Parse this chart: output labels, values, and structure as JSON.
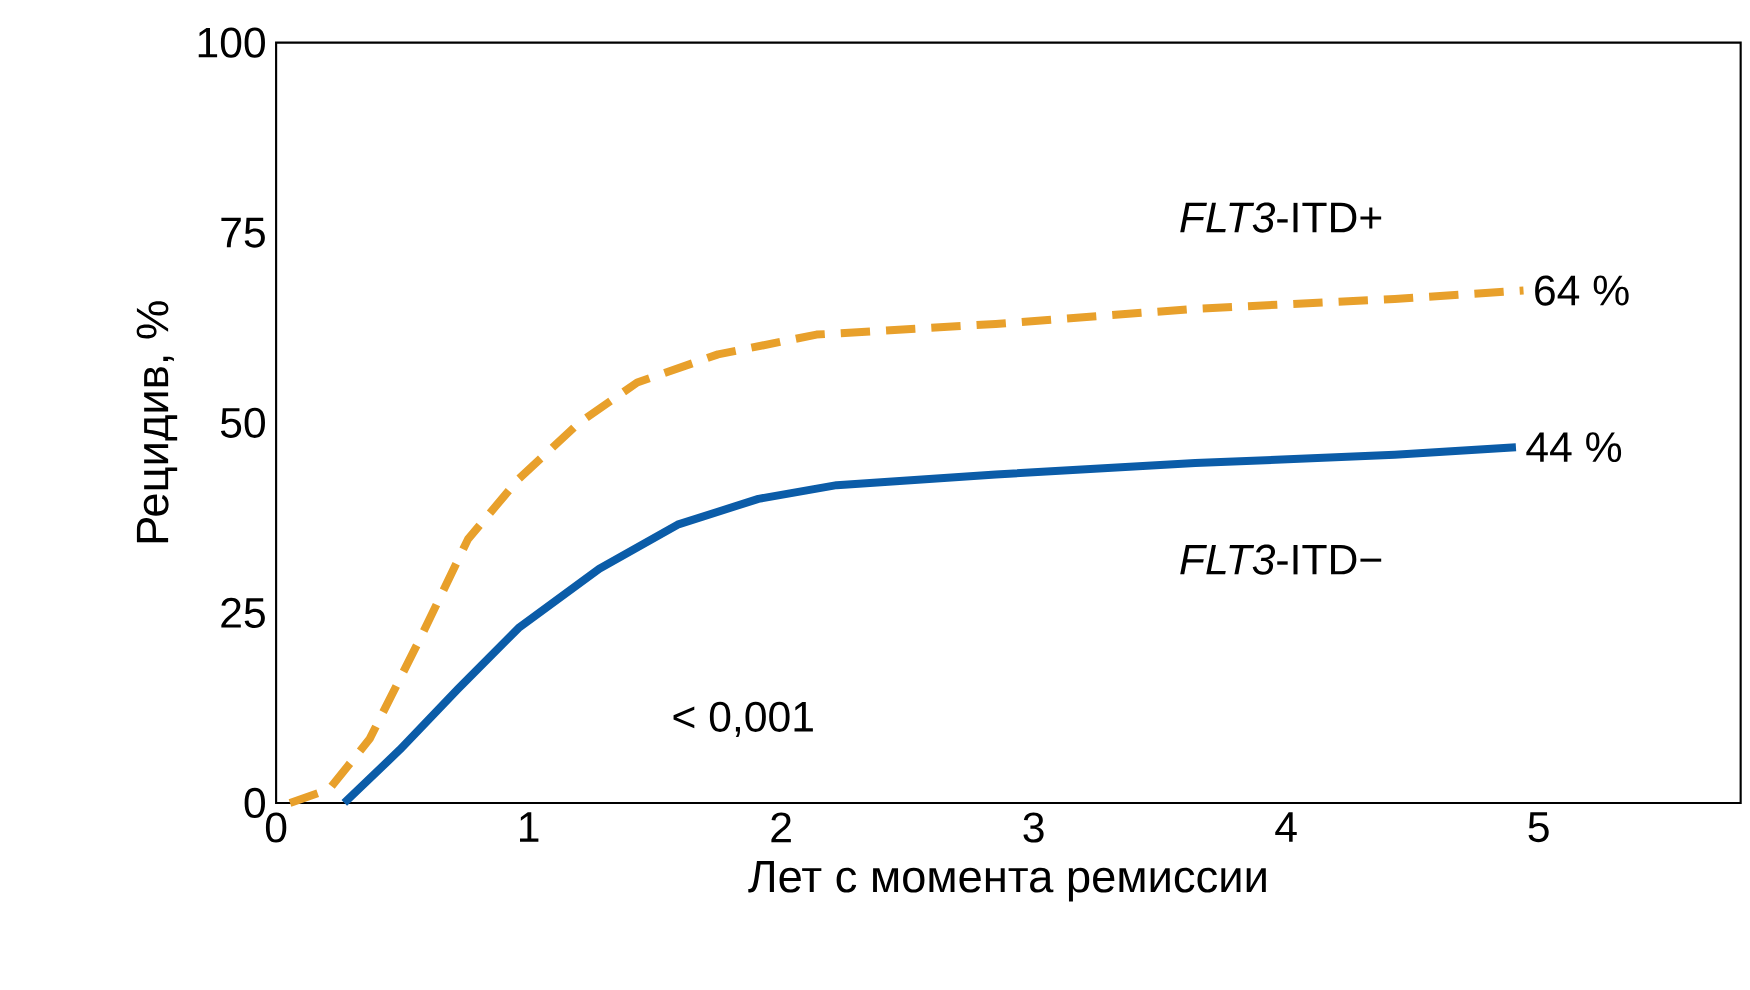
{
  "chart_data": {
    "type": "line",
    "xlabel": "Лет с момента ремиссии",
    "ylabel": "Рецидив, %",
    "xlim": [
      0,
      5.8
    ],
    "ylim": [
      0,
      100
    ],
    "xticks": [
      0,
      1,
      2,
      3,
      4,
      5
    ],
    "yticks": [
      0,
      25,
      50,
      75,
      100
    ],
    "grid": false,
    "legend": false,
    "marker": "none",
    "series": [
      {
        "name": "*FLT3*-ITD+",
        "color": "#e8a02b",
        "line_style": "dashed",
        "x": [
          0.055,
          0.21,
          0.37,
          0.57,
          0.76,
          0.96,
          1.2,
          1.43,
          1.75,
          2.14,
          2.85,
          3.64,
          4.43,
          4.94
        ],
        "values": [
          0,
          1.8,
          8.4,
          21.6,
          34.7,
          42.6,
          50,
          55.3,
          59,
          61.6,
          63,
          65,
          66.3,
          67.4
        ]
      },
      {
        "name": "*FLT3*-ITD−",
        "color": "#0b5ca8",
        "line_style": "solid",
        "x": [
          0.27,
          0.49,
          0.72,
          0.96,
          1.28,
          1.59,
          1.91,
          2.22,
          2.85,
          3.64,
          4.43,
          4.91
        ],
        "values": [
          0,
          7,
          15,
          23,
          30.8,
          36.6,
          40,
          41.8,
          43.2,
          44.7,
          45.8,
          46.8
        ]
      }
    ],
    "annotations": [
      {
        "text": "64 %",
        "x": 4.94,
        "y": 67.4
      },
      {
        "text": "44 %",
        "x": 4.91,
        "y": 46.8
      },
      "< 0,001"
    ]
  }
}
